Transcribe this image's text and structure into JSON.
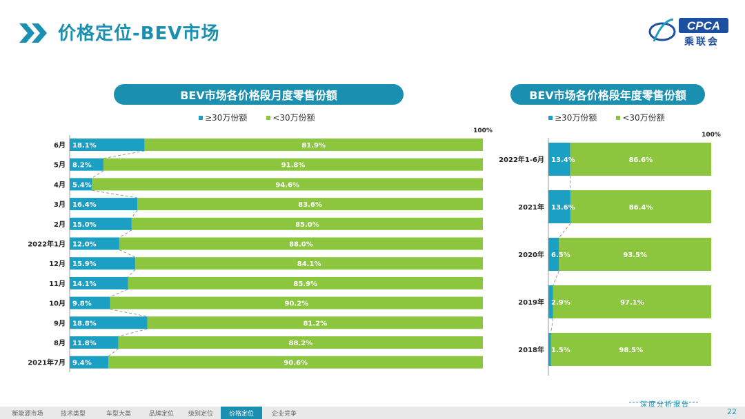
{
  "header": {
    "title": "价格定位-BEV市场",
    "logo_text": "CPCA",
    "logo_sub": "乘联会"
  },
  "colors": {
    "above": "#1b9fc3",
    "below": "#8cc63e",
    "accent": "#1a8fb0"
  },
  "chart_data": [
    {
      "type": "bar",
      "stacked": true,
      "orientation": "horizontal",
      "title": "BEV市场各价格段月度零售份额",
      "categories": [
        "6月",
        "5月",
        "4月",
        "3月",
        "2月",
        "2022年1月",
        "12月",
        "11月",
        "10月",
        "9月",
        "8月",
        "2021年7月"
      ],
      "series": [
        {
          "name": "≥30万份额",
          "values": [
            18.1,
            8.2,
            5.4,
            16.4,
            15.0,
            12.0,
            15.9,
            14.1,
            9.8,
            18.8,
            11.8,
            9.4
          ],
          "labels": [
            "18.1%",
            "8.2%",
            "5.4%",
            "16.4%",
            "15.0%",
            "12.0%",
            "15.9%",
            "14.1%",
            "9.8%",
            "18.8%",
            "11.8%",
            "9.4%"
          ]
        },
        {
          "name": "<30万份额",
          "values": [
            81.9,
            91.8,
            94.6,
            83.6,
            85.0,
            88.0,
            84.1,
            85.9,
            90.2,
            81.2,
            88.2,
            90.6
          ],
          "labels": [
            "81.9%",
            "91.8%",
            "94.6%",
            "83.6%",
            "85.0%",
            "88.0%",
            "84.1%",
            "85.9%",
            "90.2%",
            "81.2%",
            "88.2%",
            "90.6%"
          ]
        }
      ],
      "xlim": [
        0,
        100
      ],
      "max_label": "100%",
      "legend": "top"
    },
    {
      "type": "bar",
      "stacked": true,
      "orientation": "horizontal",
      "title": "BEV市场各价格段年度零售份额",
      "categories": [
        "2022年1-6月",
        "2021年",
        "2020年",
        "2019年",
        "2018年"
      ],
      "series": [
        {
          "name": "≥30万份额",
          "values": [
            13.4,
            13.6,
            6.5,
            2.9,
            1.5
          ],
          "labels": [
            "13.4%",
            "13.6%",
            "6.5%",
            "2.9%",
            "1.5%"
          ]
        },
        {
          "name": "<30万份额",
          "values": [
            86.6,
            86.4,
            93.5,
            97.1,
            98.5
          ],
          "labels": [
            "86.6%",
            "86.4%",
            "93.5%",
            "97.1%",
            "98.5%"
          ]
        }
      ],
      "xlim": [
        0,
        100
      ],
      "max_label": "100%",
      "legend": "top"
    }
  ],
  "footer": {
    "nav": [
      "新能源市场",
      "技术类型",
      "车型大类",
      "品牌定位",
      "级别定位",
      "价格定位",
      "企业竞争"
    ],
    "active_index": 5,
    "report_label": "深度分析报告",
    "page": "22"
  }
}
